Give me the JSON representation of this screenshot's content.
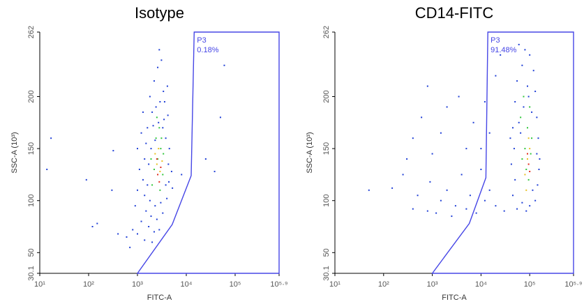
{
  "chart_data": [
    {
      "type": "scatter",
      "title": "Isotype",
      "xlabel": "FITC-A",
      "ylabel": "SSC-A (10³)",
      "xscale": "log",
      "xlim": [
        10,
        794328
      ],
      "ylim": [
        30.1,
        262
      ],
      "xticks": [
        {
          "value": 10,
          "label": "10¹"
        },
        {
          "value": 100,
          "label": "10²"
        },
        {
          "value": 1000,
          "label": "10³"
        },
        {
          "value": 10000,
          "label": "10⁴"
        },
        {
          "value": 100000,
          "label": "10⁵"
        },
        {
          "value": 794328,
          "label": "10⁵·⁹"
        }
      ],
      "yticks": [
        30.1,
        50,
        100,
        150,
        200,
        262
      ],
      "gate": {
        "label": "P3",
        "value": 0.18,
        "value_label": "0.18%",
        "color": "#4646e6",
        "x": [
          1000,
          5150,
          12600,
          14500,
          794328,
          794328
        ],
        "y": [
          30.1,
          77,
          124,
          262,
          262,
          30.1
        ]
      },
      "series": [
        {
          "color": "#1f3fd6",
          "x": [
            1800,
            2200,
            2600,
            3100,
            2000,
            2400,
            2900,
            3400,
            1600,
            2100,
            2700,
            3500,
            4200,
            1500,
            1900,
            2300,
            3800,
            4500,
            1400,
            1700,
            4300,
            5000,
            1300,
            1600,
            4400,
            5200,
            1400,
            1800,
            2300,
            3000,
            4000,
            1500,
            1900,
            2500,
            3300,
            1200,
            1700,
            2200,
            2800,
            1000,
            1400,
            600,
            800,
            900,
            1000,
            1100,
            1000,
            1200,
            1300,
            3800,
            700,
            2000,
            400,
            3600,
            4100,
            2800,
            17,
            14,
            120,
            150,
            90,
            320,
            300,
            60000,
            50000,
            8000,
            25000,
            3300,
            38000
          ],
          "y": [
            200,
            215,
            228,
            235,
            185,
            190,
            195,
            205,
            170,
            172,
            175,
            178,
            182,
            155,
            150,
            158,
            160,
            150,
            140,
            135,
            135,
            128,
            120,
            115,
            118,
            112,
            105,
            100,
            95,
            98,
            102,
            90,
            85,
            82,
            88,
            80,
            75,
            70,
            72,
            68,
            62,
            65,
            72,
            95,
            110,
            130,
            150,
            165,
            185,
            115,
            55,
            60,
            68,
            195,
            210,
            245,
            160,
            130,
            75,
            78,
            120,
            148,
            110,
            230,
            180,
            125,
            140,
            170,
            128
          ]
        },
        {
          "color": "#2fc63a",
          "x": [
            2200,
            2600,
            3000,
            2400,
            2800,
            3300,
            2000,
            2900,
            2500,
            3400,
            1900,
            3100
          ],
          "y": [
            130,
            140,
            150,
            160,
            170,
            125,
            115,
            110,
            180,
            145,
            140,
            160
          ]
        },
        {
          "color": "#e8c020",
          "x": [
            2500,
            2900,
            2700,
            2300,
            3200
          ],
          "y": [
            135,
            128,
            150,
            145,
            138
          ]
        },
        {
          "color": "#e02a1a",
          "x": [
            2600,
            2800,
            2500,
            3000
          ],
          "y": [
            125,
            118,
            140,
            132
          ]
        }
      ]
    },
    {
      "type": "scatter",
      "title": "CD14-FITC",
      "xlabel": "FITC-A",
      "ylabel": "SSC-A (10³)",
      "xscale": "log",
      "xlim": [
        10,
        794328
      ],
      "ylim": [
        30.1,
        262
      ],
      "xticks": [
        {
          "value": 10,
          "label": "10¹"
        },
        {
          "value": 100,
          "label": "10²"
        },
        {
          "value": 1000,
          "label": "10³"
        },
        {
          "value": 10000,
          "label": "10⁴"
        },
        {
          "value": 100000,
          "label": "10⁵"
        },
        {
          "value": 794328,
          "label": "10⁵·⁹"
        }
      ],
      "yticks": [
        30.1,
        50,
        100,
        150,
        200,
        262
      ],
      "gate": {
        "label": "P3",
        "value": 91.48,
        "value_label": "91.48%",
        "color": "#4646e6",
        "x": [
          1000,
          5750,
          12600,
          13800,
          794328,
          794328
        ],
        "y": [
          30.1,
          78,
          122,
          262,
          262,
          30.1
        ]
      },
      "series": [
        {
          "color": "#1f3fd6",
          "x": [
            60000,
            80000,
            100000,
            70000,
            120000,
            55000,
            90000,
            130000,
            50000,
            75000,
            110000,
            140000,
            45000,
            65000,
            150000,
            48000,
            140000,
            42000,
            155000,
            50000,
            145000,
            45000,
            70000,
            100000,
            130000,
            55000,
            85000,
            115000,
            60000,
            95000,
            40000,
            160000,
            3000,
            1500,
            800,
            500,
            2000,
            5000,
            8000,
            12000,
            20000,
            30000,
            400,
            1200,
            2500,
            6000,
            15000,
            900,
            250,
            150,
            4000,
            10000,
            600,
            400,
            1500,
            2000,
            3500,
            800,
            7000,
            10000,
            20000,
            25000,
            12000,
            300,
            1000,
            5000,
            50,
            15000
          ],
          "y": [
            250,
            245,
            240,
            230,
            225,
            215,
            210,
            205,
            195,
            190,
            185,
            180,
            170,
            165,
            160,
            150,
            145,
            135,
            130,
            120,
            115,
            105,
            98,
            95,
            100,
            92,
            90,
            110,
            175,
            200,
            160,
            140,
            95,
            100,
            90,
            105,
            110,
            92,
            88,
            100,
            95,
            90,
            92,
            88,
            85,
            105,
            110,
            118,
            125,
            112,
            125,
            130,
            180,
            160,
            165,
            190,
            200,
            210,
            175,
            150,
            220,
            240,
            195,
            140,
            145,
            150,
            110,
            165
          ]
        },
        {
          "color": "#2fc63a",
          "x": [
            80000,
            90000,
            70000,
            100000,
            85000,
            110000,
            75000,
            95000,
            65000,
            105000
          ],
          "y": [
            150,
            170,
            140,
            190,
            130,
            160,
            200,
            120,
            180,
            145
          ]
        },
        {
          "color": "#e8c020",
          "x": [
            90000,
            100000,
            80000,
            95000,
            85000
          ],
          "y": [
            140,
            150,
            125,
            160,
            110
          ]
        },
        {
          "color": "#e02a1a",
          "x": [
            95000,
            90000,
            100000
          ],
          "y": [
            135,
            145,
            128
          ]
        }
      ]
    }
  ]
}
